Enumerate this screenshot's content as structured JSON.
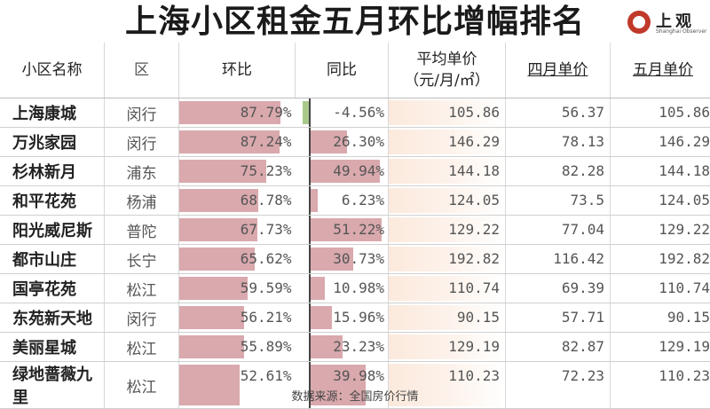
{
  "title": "上海小区租金五月环比增幅排名",
  "logo": {
    "text": "上观",
    "sub": "Shanghai Observer",
    "icon": "shanghai-observer-logo-icon",
    "color": "#c0392b"
  },
  "headers": {
    "name": "小区名称",
    "district": "区",
    "mom": "环比",
    "yoy": "同比",
    "avg_line1": "平均单价",
    "avg_line2": "（元/月/㎡）",
    "apr": "四月单价",
    "may": "五月单价"
  },
  "footer": "数据来源：全国房价行情",
  "colors": {
    "bar": "#d9a9ad",
    "negative_bar": "#a8c98a",
    "gradient": "#fbe9dc"
  },
  "chart_data": {
    "type": "table",
    "title": "上海小区租金五月环比增幅排名",
    "columns": [
      "小区名称",
      "区",
      "环比",
      "同比",
      "平均单价（元/月/㎡）",
      "四月单价",
      "五月单价"
    ],
    "rows": [
      {
        "name": "上海康城",
        "district": "闵行",
        "mom": 87.79,
        "mom_label": "87.79%",
        "yoy": -4.56,
        "yoy_label": "-4.56%",
        "avg": "105.86",
        "apr": "56.37",
        "may": "105.86"
      },
      {
        "name": "万兆家园",
        "district": "闵行",
        "mom": 87.24,
        "mom_label": "87.24%",
        "yoy": 26.3,
        "yoy_label": "26.30%",
        "avg": "146.29",
        "apr": "78.13",
        "may": "146.29"
      },
      {
        "name": "杉林新月",
        "district": "浦东",
        "mom": 75.23,
        "mom_label": "75.23%",
        "yoy": 49.94,
        "yoy_label": "49.94%",
        "avg": "144.18",
        "apr": "82.28",
        "may": "144.18"
      },
      {
        "name": "和平花苑",
        "district": "杨浦",
        "mom": 68.78,
        "mom_label": "68.78%",
        "yoy": 6.23,
        "yoy_label": "6.23%",
        "avg": "124.05",
        "apr": "73.5",
        "may": "124.05"
      },
      {
        "name": "阳光威尼斯",
        "district": "普陀",
        "mom": 67.73,
        "mom_label": "67.73%",
        "yoy": 51.22,
        "yoy_label": "51.22%",
        "avg": "129.22",
        "apr": "77.04",
        "may": "129.22"
      },
      {
        "name": "都市山庄",
        "district": "长宁",
        "mom": 65.62,
        "mom_label": "65.62%",
        "yoy": 30.73,
        "yoy_label": "30.73%",
        "avg": "192.82",
        "apr": "116.42",
        "may": "192.82"
      },
      {
        "name": "国亭花苑",
        "district": "松江",
        "mom": 59.59,
        "mom_label": "59.59%",
        "yoy": 10.98,
        "yoy_label": "10.98%",
        "avg": "110.74",
        "apr": "69.39",
        "may": "110.74"
      },
      {
        "name": "东苑新天地",
        "district": "闵行",
        "mom": 56.21,
        "mom_label": "56.21%",
        "yoy": 15.96,
        "yoy_label": "15.96%",
        "avg": "90.15",
        "apr": "57.71",
        "may": "90.15"
      },
      {
        "name": "美丽星城",
        "district": "松江",
        "mom": 55.89,
        "mom_label": "55.89%",
        "yoy": 23.23,
        "yoy_label": "23.23%",
        "avg": "129.19",
        "apr": "82.87",
        "may": "129.19"
      },
      {
        "name": "绿地蔷薇九里",
        "district": "松江",
        "mom": 52.61,
        "mom_label": "52.61%",
        "yoy": 39.98,
        "yoy_label": "39.98%",
        "avg": "110.23",
        "apr": "72.23",
        "may": "110.23"
      }
    ]
  }
}
